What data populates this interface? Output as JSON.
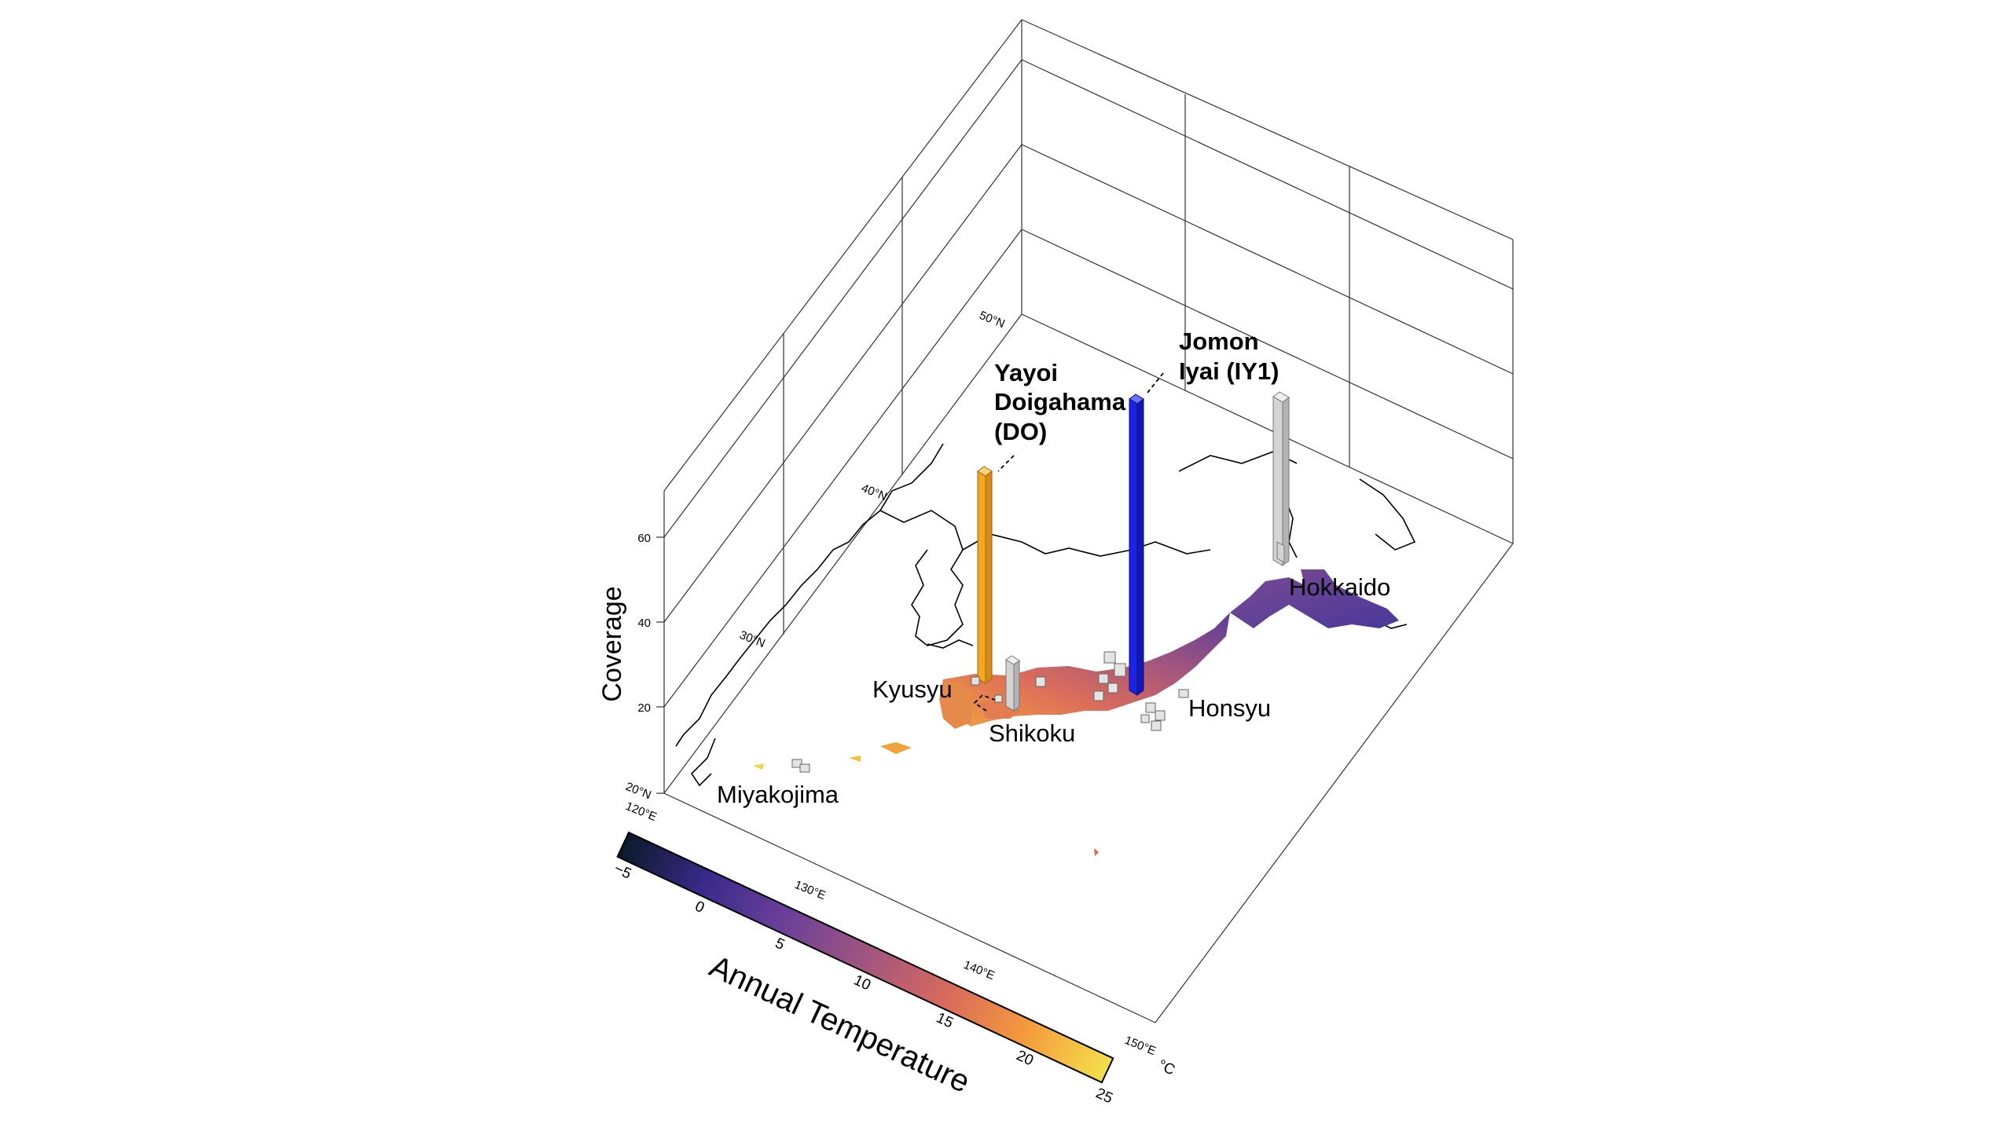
{
  "map": {
    "axes": {
      "coverage_label": "Coverage",
      "coverage_ticks": [
        "20",
        "40",
        "60"
      ],
      "lat_ticks": [
        "20°N",
        "30°N",
        "40°N",
        "50°N"
      ],
      "lon_ticks": [
        "120°E",
        "130°E",
        "140°E",
        "150°E"
      ]
    },
    "places": {
      "hokkaido": "Hokkaido",
      "honsyu": "Honsyu",
      "kyusyu": "Kyusyu",
      "shikoku": "Shikoku",
      "miyakojima": "Miyakojima"
    },
    "samples": {
      "yayoi": {
        "line1": "Yayoi",
        "line2": "Doigahama",
        "line3": "(DO)",
        "color": "#f5a623",
        "coverage": 52
      },
      "jomon": {
        "line1": "Jomon",
        "line2": "Iyai (IY1)",
        "color": "#1c23e6",
        "coverage": 70
      },
      "gray_hokkaido": {
        "color": "#d3d3d3",
        "coverage": 40
      }
    },
    "colorbar": {
      "title": "Annual Temperature",
      "unit": "°C",
      "ticks": [
        "−5",
        "0",
        "5",
        "10",
        "15",
        "20",
        "25"
      ],
      "colors": [
        "#0b1a2a",
        "#3a2a8a",
        "#6a3f9a",
        "#a0557f",
        "#d86a5c",
        "#f49a3c",
        "#f4e04a"
      ]
    }
  }
}
